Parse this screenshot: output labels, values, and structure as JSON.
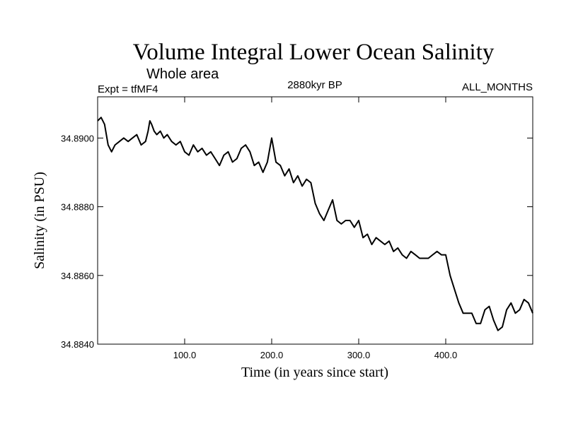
{
  "chart_data": {
    "type": "line",
    "title": "Volume Integral Lower Ocean Salinity",
    "subtitle": "Whole area",
    "experiment_label": "Expt = tfMF4",
    "period_label": "2880kyr BP",
    "months_label": "ALL_MONTHS",
    "xlabel": "Time (in years since start)",
    "ylabel": "Salinity (in PSU)",
    "xlim": [
      0,
      500
    ],
    "ylim": [
      34.884,
      34.8912
    ],
    "x_ticks": [
      100,
      200,
      300,
      400
    ],
    "x_tick_labels": [
      "100.0",
      "200.0",
      "300.0",
      "400.0"
    ],
    "y_ticks": [
      34.884,
      34.886,
      34.888,
      34.89
    ],
    "y_tick_labels": [
      "34.8840",
      "34.8860",
      "34.8880",
      "34.8900"
    ],
    "grid": false,
    "series": [
      {
        "name": "Salinity",
        "x": [
          0,
          4,
          8,
          12,
          16,
          20,
          25,
          30,
          35,
          40,
          45,
          50,
          55,
          58,
          60,
          62,
          65,
          68,
          72,
          76,
          80,
          85,
          90,
          95,
          100,
          105,
          110,
          115,
          120,
          125,
          130,
          135,
          140,
          145,
          150,
          155,
          160,
          165,
          170,
          175,
          180,
          185,
          190,
          195,
          200,
          205,
          210,
          215,
          220,
          225,
          230,
          235,
          240,
          245,
          250,
          255,
          260,
          265,
          270,
          275,
          280,
          285,
          290,
          295,
          300,
          305,
          310,
          315,
          320,
          325,
          330,
          335,
          340,
          345,
          350,
          355,
          360,
          365,
          370,
          375,
          380,
          385,
          390,
          395,
          400,
          405,
          410,
          415,
          420,
          425,
          430,
          435,
          440,
          445,
          450,
          455,
          460,
          465,
          470,
          475,
          480,
          485,
          490,
          495,
          500
        ],
        "values": [
          34.8905,
          34.8906,
          34.8904,
          34.8898,
          34.8896,
          34.8898,
          34.8899,
          34.89,
          34.8899,
          34.89,
          34.8901,
          34.8898,
          34.8899,
          34.8902,
          34.8905,
          34.8904,
          34.8902,
          34.8901,
          34.8902,
          34.89,
          34.8901,
          34.8899,
          34.8898,
          34.8899,
          34.8896,
          34.8895,
          34.8898,
          34.8896,
          34.8897,
          34.8895,
          34.8896,
          34.8894,
          34.8892,
          34.8895,
          34.8896,
          34.8893,
          34.8894,
          34.8897,
          34.8898,
          34.8896,
          34.8892,
          34.8893,
          34.889,
          34.8893,
          34.89,
          34.8893,
          34.8892,
          34.8889,
          34.8891,
          34.8887,
          34.8889,
          34.8886,
          34.8888,
          34.8887,
          34.8881,
          34.8878,
          34.8876,
          34.8879,
          34.8882,
          34.8876,
          34.8875,
          34.8876,
          34.8876,
          34.8874,
          34.8876,
          34.8871,
          34.8872,
          34.8869,
          34.8871,
          34.887,
          34.8869,
          34.887,
          34.8867,
          34.8868,
          34.8866,
          34.8865,
          34.8867,
          34.8866,
          34.8865,
          34.8865,
          34.8865,
          34.8866,
          34.8867,
          34.8866,
          34.8866,
          34.886,
          34.8856,
          34.8852,
          34.8849,
          34.8849,
          34.8849,
          34.8846,
          34.8846,
          34.885,
          34.8851,
          34.8847,
          34.8844,
          34.8845,
          34.885,
          34.8852,
          34.8849,
          34.885,
          34.8853,
          34.8852,
          34.8849
        ]
      }
    ]
  }
}
